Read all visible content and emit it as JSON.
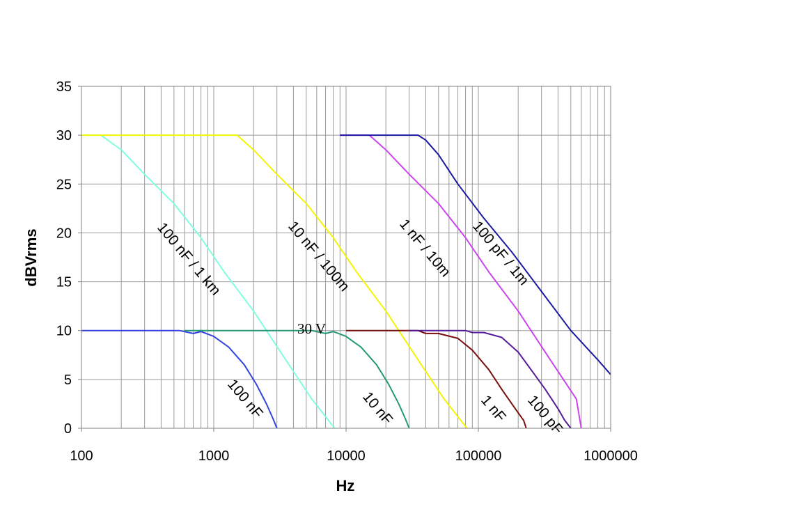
{
  "chart_data": {
    "type": "line",
    "title": "",
    "xlabel": "Hz",
    "ylabel": "dBVrms",
    "xscale": "log",
    "xlim": [
      100,
      1000000
    ],
    "ylim": [
      0,
      35
    ],
    "xticks": [
      "100",
      "1000",
      "10000",
      "100000",
      "1000000"
    ],
    "yticks": [
      "0",
      "5",
      "10",
      "15",
      "20",
      "25",
      "30",
      "35"
    ],
    "grid": true,
    "legend": "none",
    "annotations": [
      "30 V"
    ],
    "series": [
      {
        "name": "100 nF / 1 km",
        "color": "#7fffdf",
        "x": [
          100,
          140,
          200,
          300,
          500,
          800,
          1200,
          2000,
          3500,
          5500,
          8200
        ],
        "y": [
          30,
          30,
          28.5,
          26,
          23,
          19.5,
          16,
          12,
          7,
          3,
          0
        ]
      },
      {
        "name": "10 nF / 100m",
        "color": "#f5f500",
        "x": [
          100,
          1500,
          2000,
          3000,
          5000,
          8000,
          12000,
          20000,
          35000,
          55000,
          82000
        ],
        "y": [
          30,
          30,
          28.5,
          26,
          23,
          19.5,
          16,
          12,
          7,
          3,
          0
        ]
      },
      {
        "name": "1 nF / 10m",
        "color": "#cc44ee",
        "x": [
          9000,
          15000,
          20000,
          30000,
          50000,
          80000,
          120000,
          200000,
          350000,
          550000,
          600000
        ],
        "y": [
          30,
          30,
          28.5,
          26,
          23,
          19.5,
          16,
          12,
          7,
          3,
          0
        ]
      },
      {
        "name": "100 pF / 1m",
        "color": "#1a1aa0",
        "x": [
          9000,
          35000,
          40000,
          50000,
          70000,
          110000,
          180000,
          300000,
          500000,
          800000,
          1000000
        ],
        "y": [
          30,
          30,
          29.5,
          28,
          25,
          21.5,
          18,
          14,
          10,
          7,
          5.5
        ]
      },
      {
        "name": "100 nF",
        "color": "#3344dd",
        "x": [
          100,
          550,
          700,
          800,
          1000,
          1300,
          1700,
          2100,
          2500,
          2800,
          3000
        ],
        "y": [
          10,
          10,
          9.7,
          9.9,
          9.4,
          8.3,
          6.5,
          4.5,
          2.5,
          1,
          0
        ]
      },
      {
        "name": "10 nF",
        "color": "#229977",
        "x": [
          600,
          5500,
          7000,
          8000,
          10000,
          13000,
          17000,
          21000,
          25000,
          28000,
          30000
        ],
        "y": [
          10,
          10,
          9.7,
          9.9,
          9.4,
          8.3,
          6.5,
          4.5,
          2.5,
          1,
          0
        ]
      },
      {
        "name": "1 nF",
        "color": "#7a0e0e",
        "x": [
          10000,
          35000,
          40000,
          50000,
          70000,
          90000,
          120000,
          150000,
          190000,
          220000,
          230000
        ],
        "y": [
          10,
          10,
          9.7,
          9.7,
          9.2,
          8,
          6,
          4,
          2,
          0.8,
          0
        ]
      },
      {
        "name": "100 pF",
        "color": "#551a99",
        "x": [
          30000,
          80000,
          90000,
          110000,
          150000,
          200000,
          250000,
          320000,
          400000,
          450000,
          500000
        ],
        "y": [
          10,
          10,
          9.8,
          9.8,
          9.3,
          7.8,
          6,
          4,
          2,
          0.8,
          0
        ]
      }
    ]
  }
}
